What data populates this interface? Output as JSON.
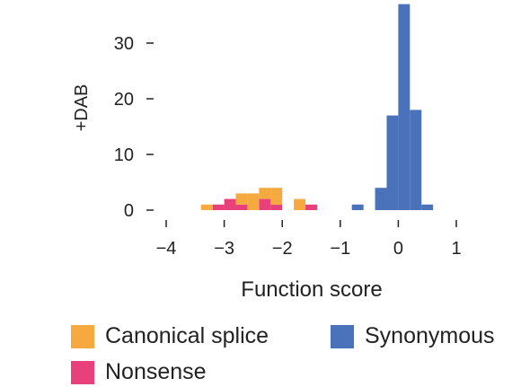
{
  "chart_data": {
    "type": "bar",
    "title": "",
    "xlabel": "Function score",
    "ylabel": "+DAB",
    "xlim": [
      -4,
      1
    ],
    "ylim": [
      0,
      37
    ],
    "xticks": [
      -4,
      -3,
      -2,
      -1,
      0,
      1
    ],
    "xtick_labels": [
      "−4",
      "−3",
      "−2",
      "−1",
      "0",
      "1"
    ],
    "yticks": [
      0,
      10,
      20,
      30
    ],
    "ytick_labels": [
      "0",
      "10",
      "20",
      "30"
    ],
    "bin_width": 0.2,
    "stacked": true,
    "grid": false,
    "legend_position": "bottom",
    "series": [
      {
        "name": "Nonsense",
        "color": "#e8407a",
        "bins": [
          {
            "x0": -3.2,
            "x1": -3.0,
            "count": 1
          },
          {
            "x0": -3.0,
            "x1": -2.8,
            "count": 2
          },
          {
            "x0": -2.8,
            "x1": -2.6,
            "count": 1
          },
          {
            "x0": -2.4,
            "x1": -2.2,
            "count": 2
          },
          {
            "x0": -2.2,
            "x1": -2.0,
            "count": 1
          },
          {
            "x0": -1.6,
            "x1": -1.4,
            "count": 1
          }
        ]
      },
      {
        "name": "Canonical splice",
        "color": "#f5a93e",
        "bins": [
          {
            "x0": -3.4,
            "x1": -3.2,
            "count": 1
          },
          {
            "x0": -2.8,
            "x1": -2.6,
            "count": 2
          },
          {
            "x0": -2.6,
            "x1": -2.4,
            "count": 3
          },
          {
            "x0": -2.4,
            "x1": -2.2,
            "count": 2
          },
          {
            "x0": -2.2,
            "x1": -2.0,
            "count": 3
          },
          {
            "x0": -1.8,
            "x1": -1.6,
            "count": 2
          }
        ]
      },
      {
        "name": "Synonymous",
        "color": "#4a72bb",
        "bins": [
          {
            "x0": -0.8,
            "x1": -0.6,
            "count": 1
          },
          {
            "x0": -0.4,
            "x1": -0.2,
            "count": 4
          },
          {
            "x0": -0.2,
            "x1": 0.0,
            "count": 17
          },
          {
            "x0": 0.0,
            "x1": 0.2,
            "count": 37
          },
          {
            "x0": 0.2,
            "x1": 0.4,
            "count": 18
          },
          {
            "x0": 0.4,
            "x1": 0.6,
            "count": 1
          }
        ]
      }
    ]
  },
  "legend": {
    "canonical_splice": {
      "label": "Canonical splice",
      "color": "#f5a93e"
    },
    "nonsense": {
      "label": "Nonsense",
      "color": "#e8407a"
    },
    "synonymous": {
      "label": "Synonymous",
      "color": "#4a72bb"
    }
  }
}
